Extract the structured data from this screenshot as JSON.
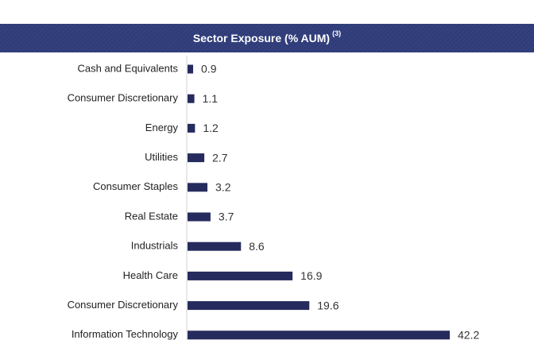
{
  "chart_data": {
    "type": "barh",
    "title": "Sector Exposure (% AUM)",
    "title_note": "(3)",
    "categories": [
      "Cash and Equivalents",
      "Consumer Discretionary",
      "Energy",
      "Utilities",
      "Consumer Staples",
      "Real Estate",
      "Industrials",
      "Health Care",
      "Consumer Discretionary",
      "Information Technology"
    ],
    "values": [
      0.9,
      1.1,
      1.2,
      2.7,
      3.2,
      3.7,
      8.6,
      16.9,
      19.6,
      42.2
    ],
    "color": "#262b5e"
  }
}
